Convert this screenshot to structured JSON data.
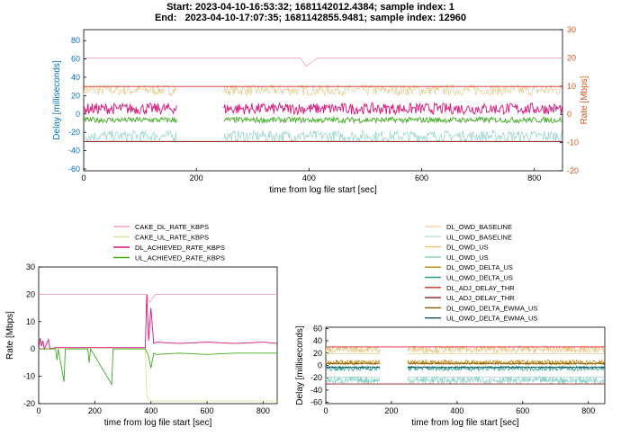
{
  "header": {
    "start_line": "Start: 2023-04-10-16:53:32; 1681142012.4384; sample index: 1",
    "end_line": "End:   2023-04-10-17:07:35; 1681142855.9481; sample index: 12960"
  },
  "colors": {
    "delay_axis": "#0072bd",
    "rate_axis": "#d95319",
    "cake_dl": "#f5a3c4",
    "cake_ul": "#d8e49a",
    "dl_achieved": "#d6157b",
    "ul_achieved": "#3cab1e",
    "dl_owd_baseline": "#f2d9a4",
    "ul_owd_baseline": "#bfe3dc",
    "dl_owd_us": "#e8c07a",
    "ul_owd_us": "#7fcdc4",
    "dl_owd_delta": "#b8860b",
    "ul_owd_delta": "#2a9d8f",
    "dl_adj_thr": "#d62728",
    "ul_adj_thr": "#8b1a1a",
    "dl_ewma": "#8b5a00",
    "ul_ewma": "#0b5a5a"
  },
  "chart_data": [
    {
      "type": "line",
      "id": "combined",
      "xlabel": "time from log file start [sec]",
      "ylabel": "Delay [milliseconds]",
      "y2label": "Rate [Mbps]",
      "xlim": [
        0,
        850
      ],
      "ylim": [
        -62,
        92
      ],
      "y2lim": [
        -20,
        30
      ],
      "xticks": [
        0,
        200,
        400,
        600,
        800
      ],
      "yticks": [
        -60,
        -40,
        -20,
        0,
        20,
        40,
        60,
        80
      ],
      "y2ticks": [
        -20,
        -10,
        0,
        10,
        20,
        30
      ],
      "gap": [
        165,
        248
      ],
      "series": [
        {
          "name": "DL_OWD_US",
          "axis": "y",
          "level": 26,
          "noise": 6,
          "color_key": "dl_owd_us"
        },
        {
          "name": "UL_OWD_US",
          "axis": "y",
          "level": -24,
          "noise": 6,
          "color_key": "ul_owd_us"
        },
        {
          "name": "CAKE_DL_RATE_KBPS",
          "axis": "y2",
          "points": [
            [
              0,
              20
            ],
            [
              385,
              20
            ],
            [
              395,
              17
            ],
            [
              415,
              20
            ],
            [
              850,
              20
            ]
          ],
          "color_key": "cake_dl"
        },
        {
          "name": "DL_ACHIEVED_RATE_KBPS",
          "axis": "y2",
          "level": 2,
          "noise": 2,
          "color_key": "dl_achieved"
        },
        {
          "name": "UL_ACHIEVED_RATE_KBPS",
          "axis": "y2",
          "level": -2,
          "noise": 1,
          "color_key": "ul_achieved"
        },
        {
          "name": "DL_ADJ_DELAY_THR",
          "axis": "y",
          "constant": 30,
          "color_key": "dl_adj_thr"
        },
        {
          "name": "UL_ADJ_DELAY_THR",
          "axis": "y",
          "constant": -30,
          "color_key": "ul_adj_thr"
        }
      ]
    },
    {
      "type": "line",
      "id": "rate",
      "xlabel": "time from log file start [sec]",
      "ylabel": "Rate [Mbps]",
      "xlim": [
        0,
        850
      ],
      "ylim": [
        -20,
        30
      ],
      "xticks": [
        0,
        200,
        400,
        600,
        800
      ],
      "yticks": [
        -20,
        -10,
        0,
        10,
        20,
        30
      ],
      "series": [
        {
          "name": "CAKE_DL_RATE_KBPS",
          "points": [
            [
              0,
              20
            ],
            [
              385,
              20
            ],
            [
              395,
              17
            ],
            [
              415,
              20
            ],
            [
              850,
              20
            ]
          ],
          "color_key": "cake_dl"
        },
        {
          "name": "CAKE_UL_RATE_KBPS",
          "points": [
            [
              0,
              0.3
            ],
            [
              380,
              0.3
            ],
            [
              385,
              -17
            ],
            [
              395,
              -19
            ],
            [
              850,
              -19
            ]
          ],
          "color_key": "cake_ul"
        },
        {
          "name": "DL_ACHIEVED_RATE_KBPS",
          "points": [
            [
              0,
              0
            ],
            [
              5,
              4
            ],
            [
              10,
              1
            ],
            [
              15,
              3
            ],
            [
              20,
              0
            ],
            [
              35,
              3.5
            ],
            [
              40,
              0
            ],
            [
              60,
              0.5
            ],
            [
              380,
              0.5
            ],
            [
              385,
              20
            ],
            [
              392,
              3
            ],
            [
              400,
              15
            ],
            [
              410,
              2
            ],
            [
              420,
              2.5
            ],
            [
              500,
              2
            ],
            [
              600,
              2.5
            ],
            [
              700,
              2
            ],
            [
              800,
              2.5
            ],
            [
              850,
              2
            ]
          ],
          "color_key": "dl_achieved"
        },
        {
          "name": "UL_ACHIEVED_RATE_KBPS",
          "points": [
            [
              0,
              0
            ],
            [
              60,
              0
            ],
            [
              65,
              -4
            ],
            [
              70,
              0
            ],
            [
              90,
              -12
            ],
            [
              95,
              0
            ],
            [
              175,
              0
            ],
            [
              180,
              -5
            ],
            [
              185,
              0
            ],
            [
              260,
              -13
            ],
            [
              265,
              0
            ],
            [
              380,
              0
            ],
            [
              390,
              -2
            ],
            [
              400,
              -7
            ],
            [
              410,
              -1.5
            ],
            [
              420,
              -2
            ],
            [
              500,
              -1.5
            ],
            [
              600,
              -2
            ],
            [
              700,
              -1.5
            ],
            [
              850,
              -1.5
            ]
          ],
          "color_key": "ul_achieved"
        }
      ]
    },
    {
      "type": "line",
      "id": "delay",
      "xlabel": "time from log file start [sec]",
      "ylabel": "Delay [milliseconds]",
      "xlim": [
        0,
        850
      ],
      "ylim": [
        -62,
        62
      ],
      "xticks": [
        0,
        200,
        400,
        600,
        800
      ],
      "yticks": [
        -60,
        -40,
        -20,
        0,
        20,
        40,
        60
      ],
      "gap": [
        165,
        248
      ],
      "series": [
        {
          "name": "DL_OWD_BASELINE",
          "level": 19,
          "color_key": "dl_owd_baseline"
        },
        {
          "name": "UL_OWD_BASELINE",
          "level": -19,
          "color_key": "ul_owd_baseline"
        },
        {
          "name": "DL_OWD_US",
          "level": 26,
          "noise": 6,
          "color_key": "dl_owd_us"
        },
        {
          "name": "UL_OWD_US",
          "level": -24,
          "noise": 6,
          "color_key": "ul_owd_us"
        },
        {
          "name": "DL_OWD_DELTA_US",
          "level": 5,
          "noise": 4,
          "color_key": "dl_owd_delta"
        },
        {
          "name": "UL_OWD_DELTA_US",
          "level": -5,
          "noise": 4,
          "color_key": "ul_owd_delta"
        },
        {
          "name": "DL_ADJ_DELAY_THR",
          "constant": 30,
          "color_key": "dl_adj_thr"
        },
        {
          "name": "UL_ADJ_DELAY_THR",
          "constant": -30,
          "color_key": "ul_adj_thr"
        },
        {
          "name": "DL_OWD_DELTA_EWMA_US",
          "level": 3,
          "noise": 1,
          "color_key": "dl_ewma"
        },
        {
          "name": "UL_OWD_DELTA_EWMA_US",
          "level": -3,
          "noise": 1,
          "color_key": "ul_ewma"
        }
      ]
    }
  ],
  "legends": {
    "rate": [
      "CAKE_DL_RATE_KBPS",
      "CAKE_UL_RATE_KBPS",
      "DL_ACHIEVED_RATE_KBPS",
      "UL_ACHIEVED_RATE_KBPS"
    ],
    "delay": [
      "DL_OWD_BASELINE",
      "UL_OWD_BASELINE",
      "DL_OWD_US",
      "UL_OWD_US",
      "DL_OWD_DELTA_US",
      "UL_OWD_DELTA_US",
      "DL_ADJ_DELAY_THR",
      "UL_ADJ_DELAY_THR",
      "DL_OWD_DELTA_EWMA_US",
      "UL_OWD_DELTA_EWMA_US"
    ]
  }
}
